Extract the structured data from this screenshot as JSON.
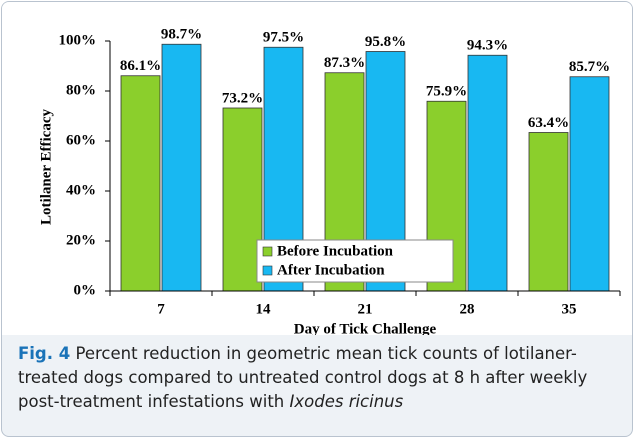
{
  "chart_data": {
    "type": "bar",
    "x_label": "Day of Tick Challenge",
    "y_label": "Lotilaner Efficacy",
    "categories": [
      "7",
      "14",
      "21",
      "28",
      "35"
    ],
    "series": [
      {
        "name": "Before Incubation",
        "color": "#8bcf2c",
        "values": [
          86.1,
          73.2,
          87.3,
          75.9,
          63.4
        ],
        "value_labels": [
          "86.1%",
          "73.2%",
          "87.3%",
          "75.9%",
          "63.4%"
        ]
      },
      {
        "name": "After Incubation",
        "color": "#18b8f2",
        "values": [
          98.7,
          97.5,
          95.8,
          94.3,
          85.7
        ],
        "value_labels": [
          "98.7%",
          "97.5%",
          "95.8%",
          "94.3%",
          "85.7%"
        ]
      }
    ],
    "ylim": [
      0,
      100
    ],
    "yticks": [
      {
        "value": 0,
        "label": "0%"
      },
      {
        "value": 20,
        "label": "20%"
      },
      {
        "value": 40,
        "label": "40%"
      },
      {
        "value": 60,
        "label": "60%"
      },
      {
        "value": 80,
        "label": "80%"
      },
      {
        "value": 100,
        "label": "100%"
      }
    ],
    "legend": "bottom"
  },
  "caption": {
    "label": "Fig. 4",
    "text": "Percent reduction in geometric mean tick counts of lotilaner-treated dogs compared to untreated control dogs at 8 h after weekly post-treatment infestations with",
    "species": "Ixodes ricinus"
  }
}
